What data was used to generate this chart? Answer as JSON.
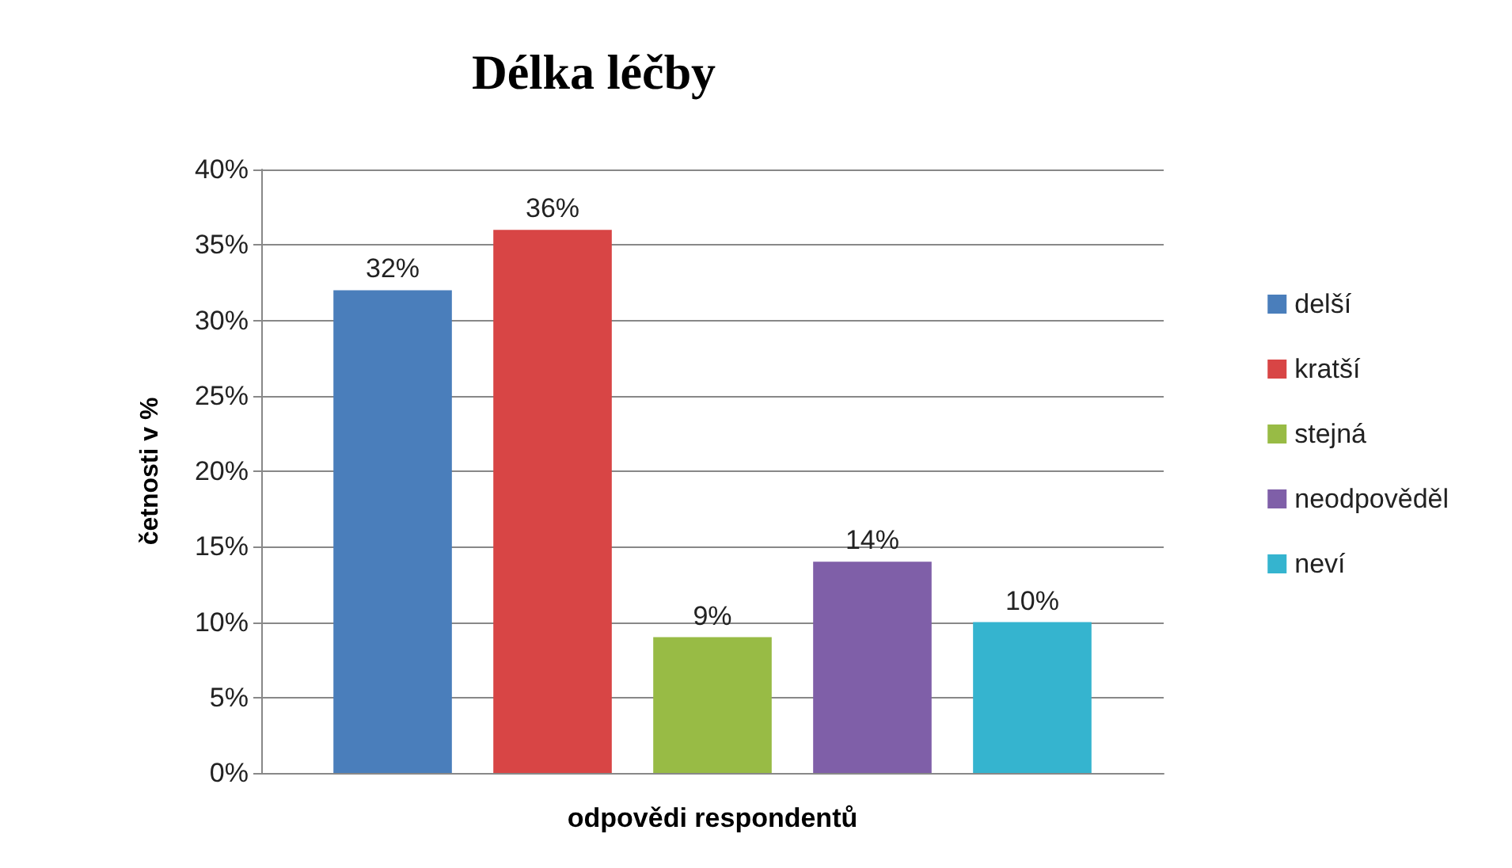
{
  "chart_data": {
    "type": "bar",
    "title": "Délka léčby",
    "xlabel": "odpovědi respondentů",
    "ylabel": "četnosti v %",
    "categories": [
      null
    ],
    "series": [
      {
        "name": "delší",
        "color": "#4a7ebb",
        "values": [
          32
        ],
        "value_labels": [
          "32%"
        ]
      },
      {
        "name": "kratší",
        "color": "#d84545",
        "values": [
          36
        ],
        "value_labels": [
          "36%"
        ]
      },
      {
        "name": "stejná",
        "color": "#98bb45",
        "values": [
          9
        ],
        "value_labels": [
          "9%"
        ]
      },
      {
        "name": "neodpověděl",
        "color": "#7f5fa8",
        "values": [
          14
        ],
        "value_labels": [
          "14%"
        ]
      },
      {
        "name": "neví",
        "color": "#35b4cf",
        "values": [
          10
        ],
        "value_labels": [
          "10%"
        ]
      }
    ],
    "ylim": [
      0,
      40
    ],
    "yticks": [
      {
        "value": 0,
        "label": "0%"
      },
      {
        "value": 5,
        "label": "5%"
      },
      {
        "value": 10,
        "label": "10%"
      },
      {
        "value": 15,
        "label": "15%"
      },
      {
        "value": 20,
        "label": "20%"
      },
      {
        "value": 25,
        "label": "25%"
      },
      {
        "value": 30,
        "label": "30%"
      },
      {
        "value": 35,
        "label": "35%"
      },
      {
        "value": 40,
        "label": "40%"
      }
    ],
    "grid": "y",
    "legend": "right"
  }
}
